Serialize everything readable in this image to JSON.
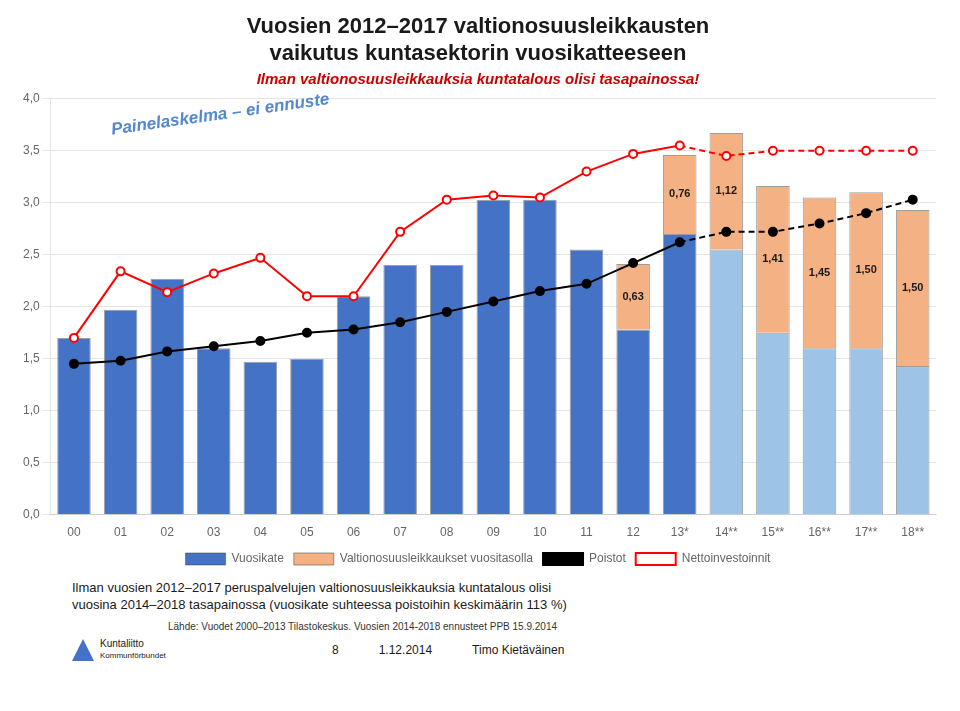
{
  "chart_data": {
    "type": "bar",
    "title": [
      "Vuosien 2012–2017 valtionosuusleikkausten",
      "vaikutus kuntasektorin vuosikatteeseen"
    ],
    "subtitle": "Ilman valtionosuusleikkauksia kuntatalous olisi tasapainossa!",
    "categories": [
      "00",
      "01",
      "02",
      "03",
      "04",
      "05",
      "06",
      "07",
      "08",
      "09",
      "10",
      "11",
      "12",
      "13*",
      "14**",
      "15**",
      "16**",
      "17**",
      "18**"
    ],
    "series": [
      {
        "name": "Vuosikate",
        "type": "bar",
        "colors": [
          "#4472C4",
          "#4472C4",
          "#4472C4",
          "#4472C4",
          "#4472C4",
          "#4472C4",
          "#4472C4",
          "#4472C4",
          "#4472C4",
          "#4472C4",
          "#4472C4",
          "#4472C4",
          "#4472C4",
          "#4472C4",
          "#9DC3E6",
          "#9DC3E6",
          "#9DC3E6",
          "#9DC3E6",
          "#9DC3E6"
        ],
        "values": [
          1.7,
          1.97,
          2.27,
          1.6,
          1.47,
          1.5,
          2.1,
          2.4,
          2.4,
          3.03,
          3.03,
          2.55,
          1.78,
          2.7,
          2.55,
          1.75,
          1.6,
          1.6,
          1.43
        ]
      },
      {
        "name": "Valtionosuusleikkaukset vuositasolla",
        "type": "bar",
        "color": "#F4B183",
        "values": [
          0,
          0,
          0,
          0,
          0,
          0,
          0,
          0,
          0,
          0,
          0,
          0,
          0.63,
          0.76,
          1.12,
          1.41,
          1.45,
          1.5,
          1.5
        ],
        "data_labels": true,
        "value_labels": [
          null,
          null,
          null,
          null,
          null,
          null,
          null,
          null,
          null,
          null,
          null,
          null,
          "0,63",
          "0,76",
          "1,12",
          "1,41",
          "1,45",
          "1,50",
          "1,50"
        ]
      },
      {
        "name": "Poistot",
        "type": "line",
        "color": "#000000",
        "marker": "circle",
        "values": [
          1.45,
          1.48,
          1.57,
          1.62,
          1.67,
          1.75,
          1.78,
          1.85,
          1.95,
          2.05,
          2.15,
          2.22,
          2.42,
          2.62,
          2.72,
          2.72,
          2.8,
          2.9,
          3.03
        ]
      },
      {
        "name": "Nettoinvestoinnit",
        "type": "line",
        "color": "#FF0000",
        "marker": "circle",
        "values": [
          1.7,
          2.34,
          2.14,
          2.32,
          2.47,
          2.1,
          2.1,
          2.72,
          3.03,
          3.07,
          3.05,
          3.3,
          3.47,
          3.55,
          3.45,
          3.5,
          3.5,
          3.5,
          3.5
        ]
      }
    ],
    "stacked": true,
    "ylim": [
      0,
      4.0
    ],
    "yticks": [
      {
        "value": 0.0,
        "label": "0,0"
      },
      {
        "value": 0.5,
        "label": "0,5"
      },
      {
        "value": 1.0,
        "label": "1,0"
      },
      {
        "value": 1.5,
        "label": "1,5"
      },
      {
        "value": 2.0,
        "label": "2,0"
      },
      {
        "value": 2.5,
        "label": "2,5"
      },
      {
        "value": 3.0,
        "label": "3,0"
      },
      {
        "value": 3.5,
        "label": "3,5"
      },
      {
        "value": 4.0,
        "label": "4,0"
      }
    ],
    "grid": true,
    "legend": "bottom",
    "annotations": [
      "Painelaskelma – ei ennuste",
      "Ilman vuosien 2012–2017 peruspalvelujen valtionosuusleikkauksia kuntatalous olisi",
      "vuosina 2014–2018 tasapainossa (vuosikate suhteessa poistoihin keskimäärin 113 %)",
      "Lähde: Vuodet 2000–2013 Tilastokeskus. Vuosien 2014-2018 ennusteet PPB 15.9.2014",
      "8",
      "1.12.2014",
      "Timo Kietäväinen",
      "Kuntaliitto",
      "Kommunförbundet"
    ]
  }
}
